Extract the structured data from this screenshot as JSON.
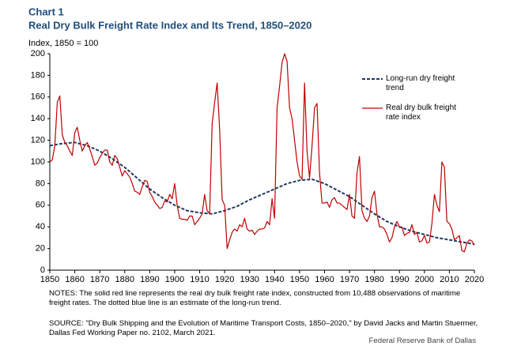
{
  "chart_data": {
    "type": "line",
    "label": "Chart 1",
    "title": "Real Dry Bulk Freight Rate Index and Its Trend, 1850–2020",
    "y_label": "Index, 1850 = 100",
    "notes": "NOTES: The solid red line represents the real dry bulk freight rate index, constructed from 10,488 observations of maritime freight rates. The dotted blue line is an estimate of the long-run trend.",
    "source": "SOURCE: \"Dry Bulk Shipping and the Evolution of Maritime Transport Costs, 1850–2020,\" by David Jacks and Martin Stuermer, Dallas Fed Working Paper no. 2102, March 2021.",
    "credit": "Federal Reserve Bank of Dallas",
    "xlim": [
      1850,
      2020
    ],
    "xticks": [
      1850,
      1860,
      1870,
      1880,
      1890,
      1900,
      1910,
      1920,
      1930,
      1940,
      1950,
      1960,
      1970,
      1980,
      1990,
      2000,
      2010,
      2020
    ],
    "ylim": [
      0,
      200
    ],
    "yticks": [
      0,
      20,
      40,
      60,
      80,
      100,
      120,
      140,
      160,
      180,
      200
    ],
    "series": [
      {
        "name": "Long-run dry freight trend",
        "color": "#1f3864",
        "dashed": true,
        "x": [
          1850,
          1855,
          1860,
          1865,
          1870,
          1875,
          1880,
          1885,
          1890,
          1895,
          1900,
          1905,
          1910,
          1915,
          1920,
          1925,
          1930,
          1935,
          1940,
          1945,
          1950,
          1955,
          1960,
          1965,
          1970,
          1975,
          1980,
          1985,
          1990,
          1995,
          2000,
          2005,
          2010,
          2015,
          2020
        ],
        "values": [
          115,
          117,
          118,
          115,
          110,
          103,
          95,
          85,
          75,
          67,
          60,
          55,
          53,
          52,
          55,
          59,
          65,
          70,
          75,
          80,
          83,
          84,
          80,
          74,
          68,
          60,
          52,
          45,
          40,
          36,
          33,
          30,
          28,
          26,
          24
        ]
      },
      {
        "name": "Real dry bulk freight rate index",
        "color": "#c00000",
        "dashed": false,
        "x": [
          1850,
          1851,
          1852,
          1853,
          1854,
          1855,
          1856,
          1857,
          1858,
          1859,
          1860,
          1861,
          1862,
          1863,
          1864,
          1865,
          1866,
          1867,
          1868,
          1869,
          1870,
          1871,
          1872,
          1873,
          1874,
          1875,
          1876,
          1877,
          1878,
          1879,
          1880,
          1881,
          1882,
          1883,
          1884,
          1885,
          1886,
          1887,
          1888,
          1889,
          1890,
          1891,
          1892,
          1893,
          1894,
          1895,
          1896,
          1897,
          1898,
          1899,
          1900,
          1901,
          1902,
          1903,
          1904,
          1905,
          1906,
          1907,
          1908,
          1909,
          1910,
          1911,
          1912,
          1913,
          1914,
          1915,
          1916,
          1917,
          1918,
          1919,
          1920,
          1921,
          1922,
          1923,
          1924,
          1925,
          1926,
          1927,
          1928,
          1929,
          1930,
          1931,
          1932,
          1933,
          1934,
          1935,
          1936,
          1937,
          1938,
          1939,
          1940,
          1941,
          1942,
          1943,
          1944,
          1945,
          1946,
          1947,
          1948,
          1949,
          1950,
          1951,
          1952,
          1953,
          1954,
          1955,
          1956,
          1957,
          1958,
          1959,
          1960,
          1961,
          1962,
          1963,
          1964,
          1965,
          1966,
          1967,
          1968,
          1969,
          1970,
          1971,
          1972,
          1973,
          1974,
          1975,
          1976,
          1977,
          1978,
          1979,
          1980,
          1981,
          1982,
          1983,
          1984,
          1985,
          1986,
          1987,
          1988,
          1989,
          1990,
          1991,
          1992,
          1993,
          1994,
          1995,
          1996,
          1997,
          1998,
          1999,
          2000,
          2001,
          2002,
          2003,
          2004,
          2005,
          2006,
          2007,
          2008,
          2009,
          2010,
          2011,
          2012,
          2013,
          2014,
          2015,
          2016,
          2017,
          2018,
          2019,
          2020
        ],
        "values": [
          100,
          102,
          115,
          155,
          161,
          125,
          118,
          115,
          110,
          106,
          127,
          132,
          120,
          110,
          115,
          118,
          112,
          105,
          97,
          99,
          104,
          108,
          111,
          111,
          100,
          97,
          106,
          103,
          95,
          87,
          92,
          89,
          86,
          80,
          73,
          72,
          70,
          77,
          83,
          82,
          72,
          68,
          63,
          60,
          57,
          58,
          64,
          63,
          70,
          66,
          80,
          60,
          48,
          47,
          47,
          46,
          50,
          50,
          42,
          45,
          48,
          52,
          70,
          55,
          52,
          135,
          155,
          173,
          130,
          65,
          60,
          20,
          28,
          35,
          38,
          36,
          42,
          40,
          48,
          38,
          36,
          37,
          33,
          36,
          38,
          38,
          39,
          45,
          42,
          66,
          48,
          150,
          170,
          192,
          200,
          193,
          150,
          140,
          120,
          100,
          87,
          84,
          173,
          110,
          85,
          115,
          150,
          154,
          90,
          62,
          62,
          63,
          58,
          65,
          67,
          62,
          62,
          60,
          58,
          56,
          70,
          50,
          48,
          90,
          105,
          55,
          48,
          45,
          50,
          67,
          73,
          52,
          40,
          40,
          38,
          33,
          26,
          30,
          40,
          45,
          40,
          40,
          32,
          34,
          35,
          42,
          33,
          35,
          26,
          27,
          32,
          25,
          26,
          43,
          70,
          60,
          54,
          100,
          95,
          45,
          43,
          38,
          28,
          30,
          32,
          18,
          17,
          25,
          28,
          27,
          23
        ]
      }
    ]
  }
}
